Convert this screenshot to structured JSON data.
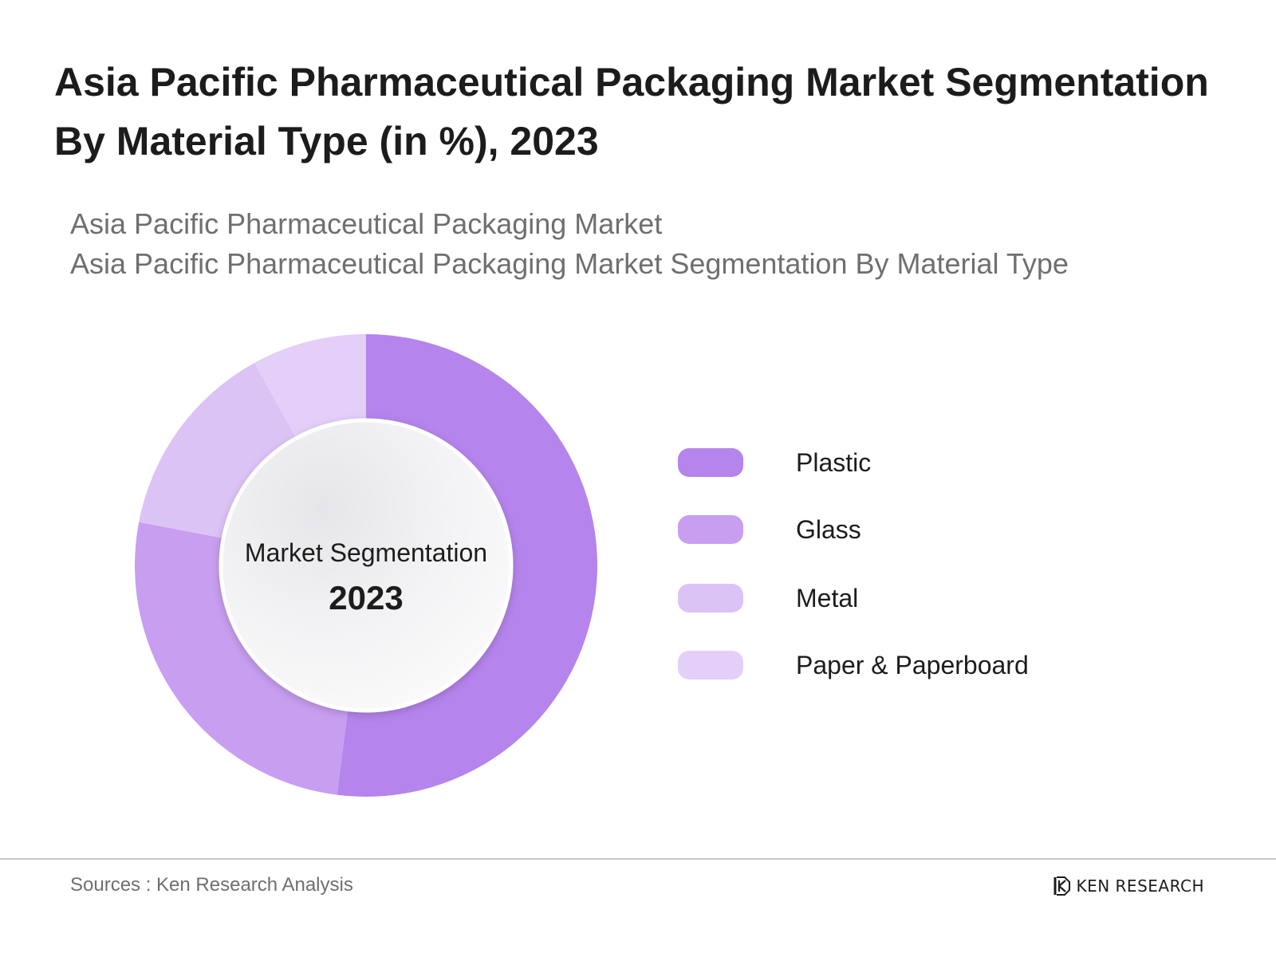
{
  "title": {
    "line1": "Asia Pacific Pharmaceutical Packaging Market Segmentation",
    "line2": "By Material Type (in %), 2023"
  },
  "subtitle": {
    "line1": "Asia Pacific Pharmaceutical Packaging Market",
    "line2": "Asia Pacific Pharmaceutical Packaging Market Segmentation By Material Type"
  },
  "chart_data": {
    "type": "pie",
    "variant": "donut",
    "center_label": "Market Segmentation",
    "center_year": "2023",
    "slices": [
      {
        "name": "Plastic",
        "value": 52,
        "color": "#b584ec"
      },
      {
        "name": "Glass",
        "value": 26,
        "color": "#c89ef0"
      },
      {
        "name": "Metal",
        "value": 14,
        "color": "#dcc3f6"
      },
      {
        "name": "Paper & Paperboard",
        "value": 8,
        "color": "#e3cff8"
      }
    ],
    "legend_position": "right"
  },
  "legend": {
    "items": [
      {
        "label": "Plastic",
        "color": "#b584ec"
      },
      {
        "label": "Glass",
        "color": "#c89ef0"
      },
      {
        "label": "Metal",
        "color": "#dcc3f6"
      },
      {
        "label": "Paper & Paperboard",
        "color": "#e3cff8"
      }
    ]
  },
  "footer": {
    "source": "Sources : Ken Research Analysis",
    "brand": "KEN RESEARCH"
  }
}
